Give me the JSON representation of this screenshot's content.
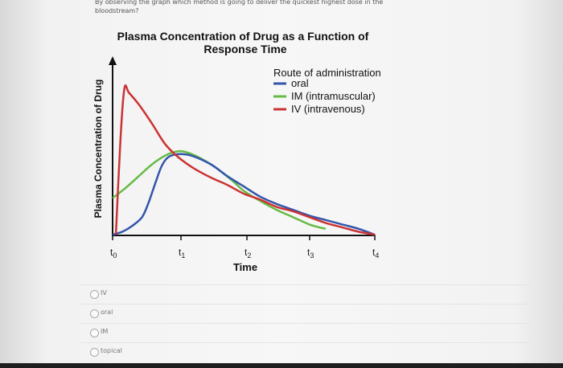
{
  "question": {
    "line1": "By observing the graph which method is going to deliver the quickest highest dose in the",
    "line2": "bloodstream?"
  },
  "chart_data": {
    "type": "line",
    "title_line1": "Plasma Concentration of Drug as a Function of",
    "title_line2": "Response Time",
    "xlabel": "Time",
    "ylabel": "Plasma Concentration of Drug",
    "categories": [
      "t0",
      "t1",
      "t2",
      "t3",
      "t4"
    ],
    "tick_labels": [
      {
        "base": "t",
        "sub": "0"
      },
      {
        "base": "t",
        "sub": "1"
      },
      {
        "base": "t",
        "sub": "2"
      },
      {
        "base": "t",
        "sub": "3"
      },
      {
        "base": "t",
        "sub": "4"
      }
    ],
    "legend_title": "Route of administration",
    "legend_position": "top-right",
    "grid": false,
    "xlim": [
      0,
      4
    ],
    "ylim": [
      0,
      1
    ],
    "series": [
      {
        "name": "oral",
        "color": "#3355aa",
        "points": [
          [
            0,
            0.0
          ],
          [
            0.15,
            0.02
          ],
          [
            0.3,
            0.06
          ],
          [
            0.45,
            0.12
          ],
          [
            0.55,
            0.22
          ],
          [
            0.65,
            0.35
          ],
          [
            0.75,
            0.47
          ],
          [
            0.85,
            0.53
          ],
          [
            1.0,
            0.55
          ],
          [
            1.2,
            0.54
          ],
          [
            1.5,
            0.48
          ],
          [
            1.75,
            0.4
          ],
          [
            2.0,
            0.33
          ],
          [
            2.25,
            0.26
          ],
          [
            2.5,
            0.21
          ],
          [
            2.75,
            0.17
          ],
          [
            3.0,
            0.13
          ],
          [
            3.25,
            0.1
          ],
          [
            3.5,
            0.07
          ],
          [
            3.75,
            0.04
          ],
          [
            4.0,
            0.0
          ]
        ]
      },
      {
        "name": "IM (intramuscular)",
        "color": "#66bb44",
        "points": [
          [
            0,
            0.25
          ],
          [
            0.2,
            0.32
          ],
          [
            0.4,
            0.4
          ],
          [
            0.6,
            0.48
          ],
          [
            0.8,
            0.54
          ],
          [
            1.0,
            0.57
          ],
          [
            1.15,
            0.56
          ],
          [
            1.35,
            0.52
          ],
          [
            1.6,
            0.45
          ],
          [
            1.85,
            0.36
          ],
          [
            2.0,
            0.3
          ],
          [
            2.25,
            0.23
          ],
          [
            2.5,
            0.17
          ],
          [
            2.75,
            0.12
          ],
          [
            3.0,
            0.07
          ],
          [
            3.15,
            0.05
          ],
          [
            3.25,
            0.04
          ]
        ]
      },
      {
        "name": "IV (intravenous)",
        "color": "#cc3333",
        "points": [
          [
            0.05,
            0.0
          ],
          [
            0.12,
            0.65
          ],
          [
            0.18,
            1.0
          ],
          [
            0.25,
            0.97
          ],
          [
            0.4,
            0.89
          ],
          [
            0.6,
            0.76
          ],
          [
            0.8,
            0.62
          ],
          [
            1.0,
            0.53
          ],
          [
            1.25,
            0.45
          ],
          [
            1.5,
            0.39
          ],
          [
            1.75,
            0.34
          ],
          [
            2.0,
            0.28
          ],
          [
            2.25,
            0.24
          ],
          [
            2.5,
            0.19
          ],
          [
            2.75,
            0.16
          ],
          [
            3.0,
            0.12
          ],
          [
            3.25,
            0.08
          ],
          [
            3.5,
            0.05
          ],
          [
            3.75,
            0.02
          ],
          [
            4.0,
            0.0
          ]
        ]
      }
    ]
  },
  "options": [
    {
      "label": "IV"
    },
    {
      "label": "oral"
    },
    {
      "label": "IM"
    },
    {
      "label": "topical"
    }
  ]
}
